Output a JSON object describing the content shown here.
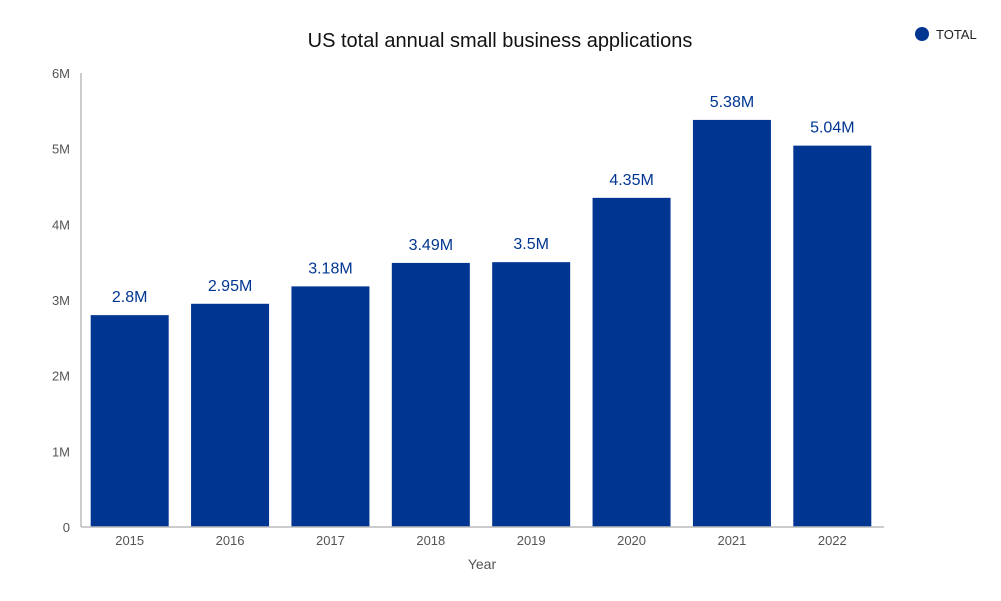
{
  "chart_data": {
    "type": "bar",
    "title": "US total annual small business applications",
    "xlabel": "Year",
    "ylabel": "",
    "categories": [
      "2015",
      "2016",
      "2017",
      "2018",
      "2019",
      "2020",
      "2021",
      "2022"
    ],
    "series": [
      {
        "name": "TOTAL",
        "values": [
          2.8,
          2.95,
          3.18,
          3.49,
          3.5,
          4.35,
          5.38,
          5.04
        ],
        "unit": "M"
      }
    ],
    "data_labels": [
      "2.8M",
      "2.95M",
      "3.18M",
      "3.49M",
      "3.5M",
      "4.35M",
      "5.38M",
      "5.04M"
    ],
    "yticks": [
      "0",
      "1M",
      "2M",
      "3M",
      "4M",
      "5M",
      "6M"
    ],
    "ylim": [
      0,
      6
    ],
    "grid": false,
    "legend_position": "top-right",
    "colors": {
      "bar": "#003591",
      "axis": "#bbbbbb"
    }
  }
}
